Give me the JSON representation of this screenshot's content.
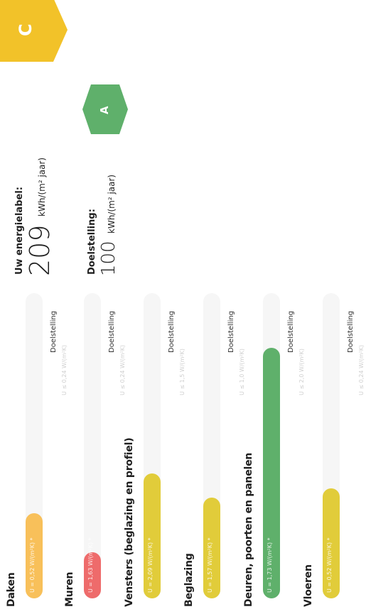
{
  "categories": [
    {
      "name": "Daken",
      "u": "U = 0,52 W/(m²K) *",
      "goal": "Doelstelling",
      "goal_faint": "U ≤ 0,24 W/(m²K)",
      "progress_pct": 28,
      "color": "#f8c05a"
    },
    {
      "name": "Muren",
      "u": "U = 1,63 W/(m²K) *",
      "goal": "Doelstelling",
      "goal_faint": "U ≤ 0,24 W/(m²K)",
      "progress_pct": 15,
      "color": "#ee6b6b"
    },
    {
      "name": "Vensters (beglazing en profiel)",
      "u": "U = 2,09 W/(m²K) *",
      "goal": "Doelstelling",
      "goal_faint": "U ≤ 1,5 W/(m²K)",
      "progress_pct": 41,
      "color": "#e1cc3a"
    },
    {
      "name": "Beglazing",
      "u": "U = 1,57 W/(m²K) *",
      "goal": "Doelstelling",
      "goal_faint": "U ≤ 1,0 W/(m²K)",
      "progress_pct": 33,
      "color": "#e1cc3a"
    },
    {
      "name": "Deuren, poorten en panelen",
      "u": "U = 1,73 W/(m²K) *",
      "goal": "Doelstelling",
      "goal_faint": "U ≤ 2,0 W/(m²K)",
      "progress_pct": 82,
      "color": "#5fb06b"
    },
    {
      "name": "Vloeren",
      "u": "U = 0,52 W/(m²K) *",
      "goal": "Doelstelling",
      "goal_faint": "U ≤ 0,24 W/(m²K)",
      "progress_pct": 36,
      "color": "#e1cc3a"
    }
  ],
  "energy": {
    "current_label": "Uw energielabel:",
    "current_value": "209",
    "current_unit": "kWh/(m² jaar)",
    "current_grade": "C",
    "target_label": "Doelstelling:",
    "target_value": "100",
    "target_unit": "kWh/(m² jaar)",
    "target_grade": "A"
  }
}
